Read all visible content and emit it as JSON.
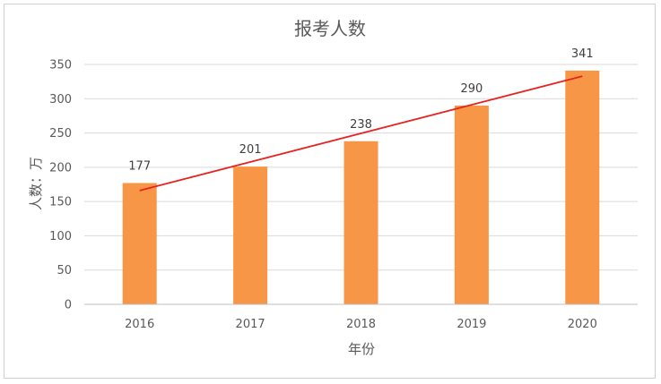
{
  "chart_data": {
    "type": "bar",
    "title": "报考人数",
    "xlabel": "年份",
    "ylabel": "人数：万",
    "categories": [
      "2016",
      "2017",
      "2018",
      "2019",
      "2020"
    ],
    "values": [
      177,
      201,
      238,
      290,
      341
    ],
    "data_labels": [
      "177",
      "201",
      "238",
      "290",
      "341"
    ],
    "yticks": [
      0,
      50,
      100,
      150,
      200,
      250,
      300,
      350
    ],
    "ylim": [
      0,
      350
    ],
    "grid": true,
    "bar_color": "#f79646",
    "trendline": {
      "type": "linear",
      "color": "#e8231f"
    },
    "legend": "none"
  }
}
